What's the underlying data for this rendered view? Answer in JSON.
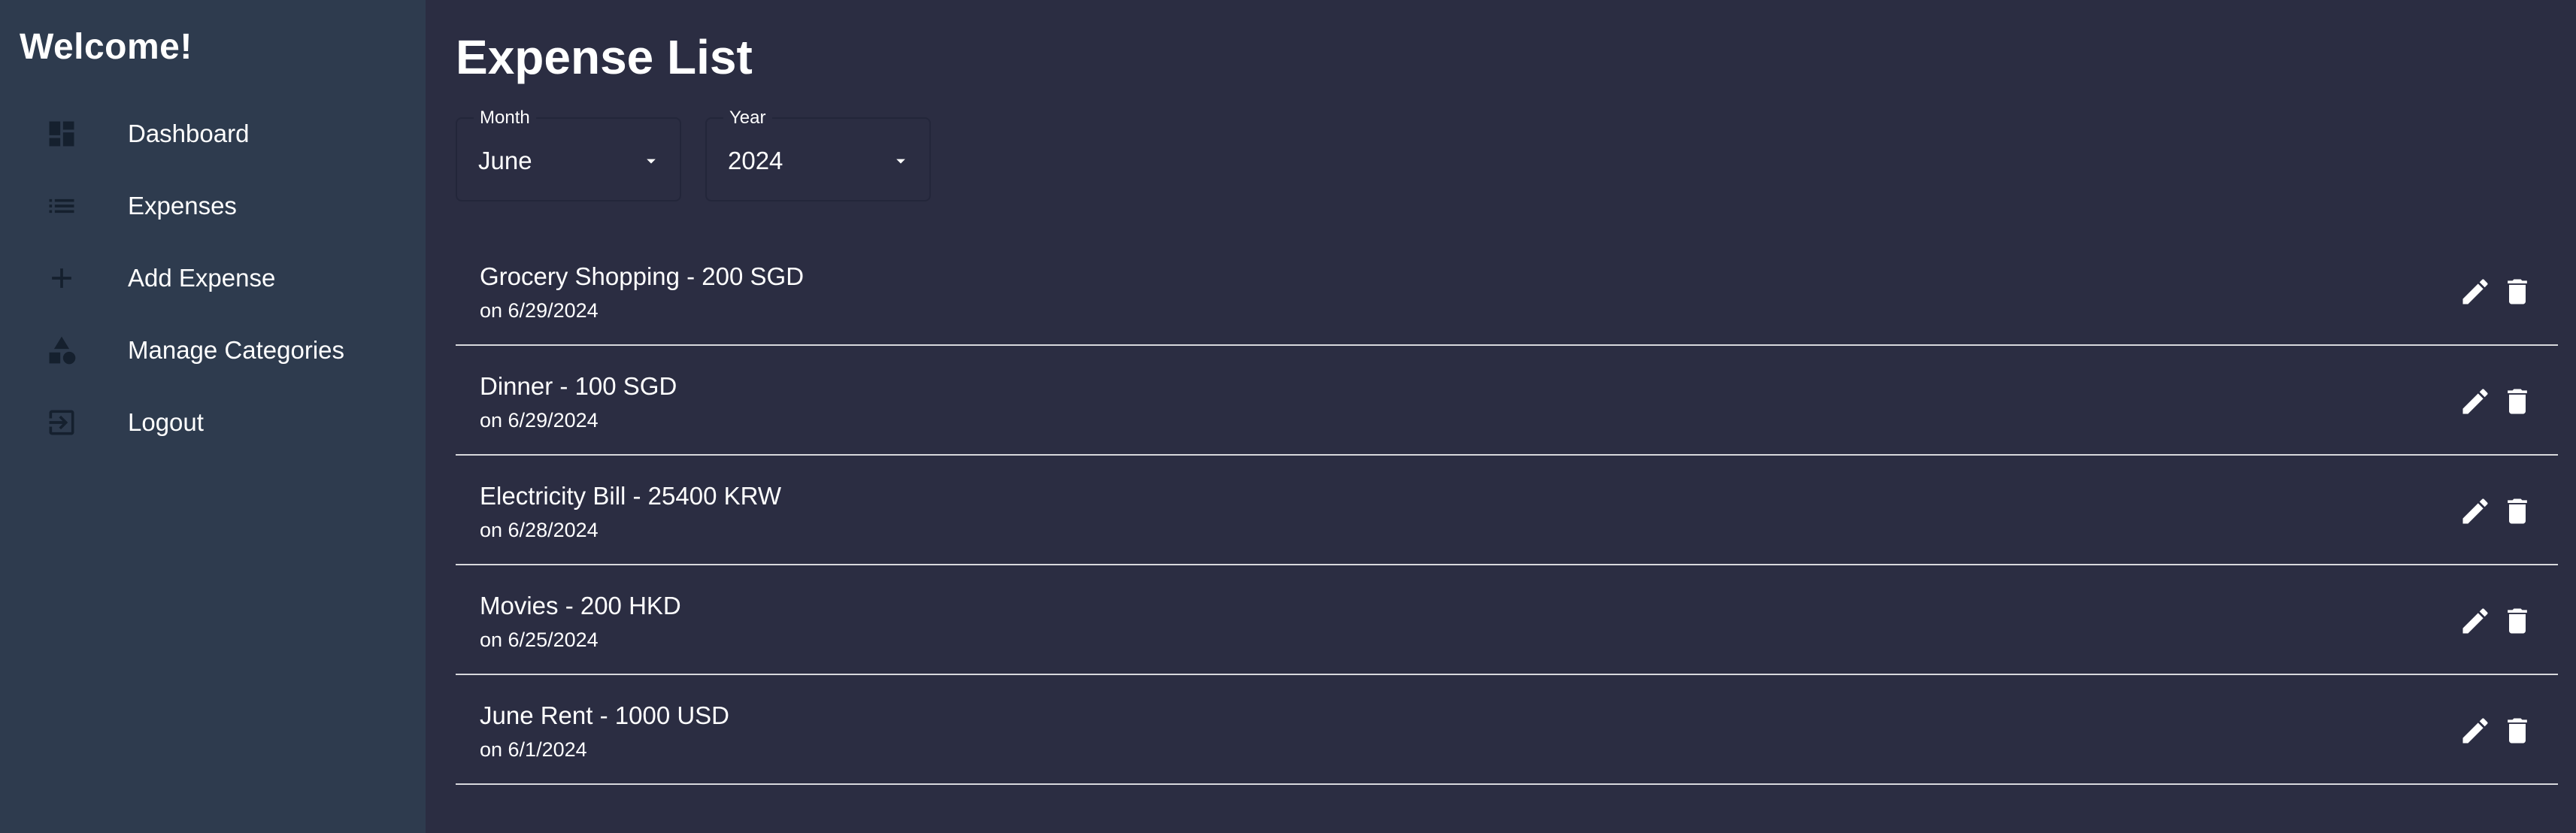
{
  "sidebar": {
    "title": "Welcome!",
    "items": [
      {
        "label": "Dashboard",
        "icon": "dashboard-icon"
      },
      {
        "label": "Expenses",
        "icon": "list-icon"
      },
      {
        "label": "Add Expense",
        "icon": "plus-icon"
      },
      {
        "label": "Manage Categories",
        "icon": "category-icon"
      },
      {
        "label": "Logout",
        "icon": "logout-icon"
      }
    ]
  },
  "main": {
    "title": "Expense List",
    "filters": {
      "month": {
        "label": "Month",
        "value": "June"
      },
      "year": {
        "label": "Year",
        "value": "2024"
      }
    },
    "expenses": [
      {
        "title": "Grocery Shopping - 200 SGD",
        "date": "on 6/29/2024"
      },
      {
        "title": "Dinner - 100 SGD",
        "date": "on 6/29/2024"
      },
      {
        "title": "Electricity Bill - 25400 KRW",
        "date": "on 6/28/2024"
      },
      {
        "title": "Movies - 200 HKD",
        "date": "on 6/25/2024"
      },
      {
        "title": "June Rent - 1000 USD",
        "date": "on 6/1/2024"
      }
    ]
  },
  "colors": {
    "background": "#2b2d42",
    "sidebar": "#2e3b4e",
    "icon_dark": "#15202e",
    "text": "#ffffff",
    "divider": "#d8d8dc"
  }
}
